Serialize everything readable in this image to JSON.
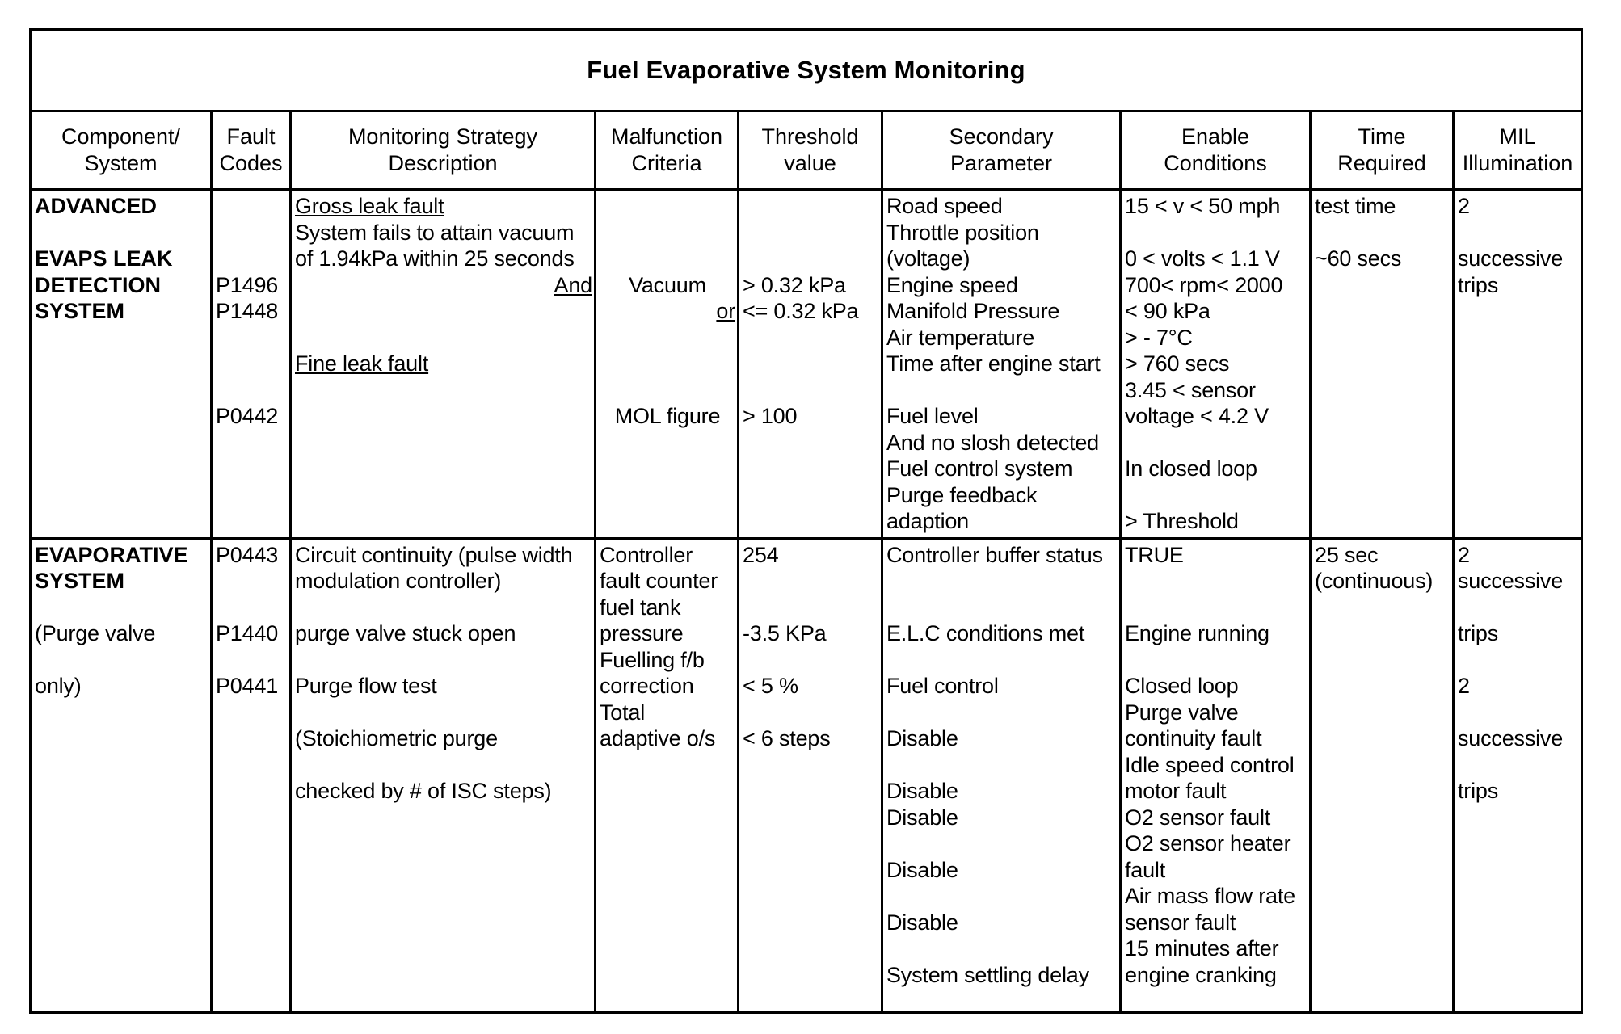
{
  "title": "Fuel Evaporative System Monitoring",
  "headers": [
    [
      "Component/",
      "System"
    ],
    [
      "Fault",
      "Codes"
    ],
    [
      "Monitoring Strategy",
      "Description"
    ],
    [
      "Malfunction",
      "Criteria"
    ],
    [
      "Threshold",
      "value"
    ],
    [
      "Secondary",
      "Parameter"
    ],
    [
      "Enable",
      "Conditions"
    ],
    [
      "Time",
      "Required"
    ],
    [
      "MIL",
      "Illumination"
    ]
  ],
  "rows": [
    {
      "cells": [
        {
          "lines": [
            {
              "t": "ADVANCED",
              "b": true
            },
            "",
            {
              "t": "EVAPS LEAK",
              "b": true
            },
            {
              "t": "DETECTION",
              "b": true
            },
            {
              "t": "SYSTEM",
              "b": true
            }
          ]
        },
        {
          "lines": [
            "",
            "",
            "",
            "P1496",
            "P1448",
            "",
            "",
            "",
            "P0442"
          ]
        },
        {
          "lines": [
            {
              "t": "Gross leak fault",
              "u": true
            },
            "System fails to attain vacuum",
            "of 1.94kPa within 25 seconds",
            {
              "t": "And",
              "u": true,
              "a": "right"
            },
            "",
            "",
            {
              "t": "Fine leak fault",
              "u": true
            }
          ]
        },
        {
          "lines": [
            "",
            "",
            "",
            {
              "t": "Vacuum",
              "a": "center"
            },
            {
              "t": "or",
              "u": true,
              "a": "right"
            },
            "",
            "",
            "",
            {
              "t": "MOL figure",
              "a": "center"
            }
          ]
        },
        {
          "lines": [
            "",
            "",
            "",
            "> 0.32 kPa",
            "<= 0.32 kPa",
            "",
            "",
            "",
            "> 100"
          ]
        },
        {
          "lines": [
            "Road speed",
            "Throttle position",
            "(voltage)",
            "Engine speed",
            "Manifold Pressure",
            "Air temperature",
            "Time after engine start",
            "",
            "Fuel level",
            "And no slosh detected",
            "Fuel control system",
            "Purge feedback",
            "adaption"
          ]
        },
        {
          "lines": [
            "15 < v < 50 mph",
            "",
            "0 < volts < 1.1 V",
            "700< rpm< 2000",
            "< 90 kPa",
            "> - 7°C",
            "> 760 secs",
            "3.45 < sensor",
            "voltage < 4.2 V",
            "",
            "In closed loop",
            "",
            "> Threshold"
          ]
        },
        {
          "lines": [
            "test time",
            "",
            "~60 secs"
          ]
        },
        {
          "lines": [
            "2",
            "",
            "successive",
            "trips"
          ]
        }
      ]
    },
    {
      "cells": [
        {
          "lines": [
            {
              "t": "EVAPORATIVE",
              "b": true
            },
            {
              "t": "SYSTEM",
              "b": true
            },
            "",
            "(Purge valve",
            "",
            "only)"
          ]
        },
        {
          "lines": [
            "P0443",
            "",
            "",
            "P1440",
            "",
            "P0441"
          ]
        },
        {
          "lines": [
            "Circuit continuity (pulse width",
            "modulation controller)",
            "",
            "purge valve stuck open",
            "",
            "Purge flow test",
            "",
            "(Stoichiometric purge",
            "",
            "checked by # of ISC steps)"
          ]
        },
        {
          "lines": [
            "Controller",
            "fault counter",
            "fuel tank",
            "pressure",
            "Fuelling f/b",
            "correction",
            "Total",
            "adaptive o/s"
          ]
        },
        {
          "lines": [
            "254",
            "",
            "",
            "-3.5 KPa",
            "",
            "< 5 %",
            "",
            "< 6 steps"
          ]
        },
        {
          "lines": [
            "Controller buffer status",
            "",
            "",
            "E.L.C conditions met",
            "",
            "Fuel control",
            "",
            "Disable",
            "",
            "Disable",
            "Disable",
            "",
            "Disable",
            "",
            "Disable",
            "",
            "System settling delay"
          ]
        },
        {
          "lines": [
            "TRUE",
            "",
            "",
            "Engine running",
            "",
            "Closed loop",
            "Purge valve",
            "continuity fault",
            "Idle speed control",
            "motor fault",
            "O2 sensor fault",
            "O2 sensor heater",
            "fault",
            "Air mass flow rate",
            "sensor fault",
            "15 minutes after",
            "engine cranking"
          ]
        },
        {
          "lines": [
            "25 sec",
            "(continuous)"
          ]
        },
        {
          "lines": [
            "2",
            "successive",
            "",
            "trips",
            "",
            "2",
            "",
            "successive",
            "",
            "trips"
          ]
        }
      ]
    }
  ]
}
